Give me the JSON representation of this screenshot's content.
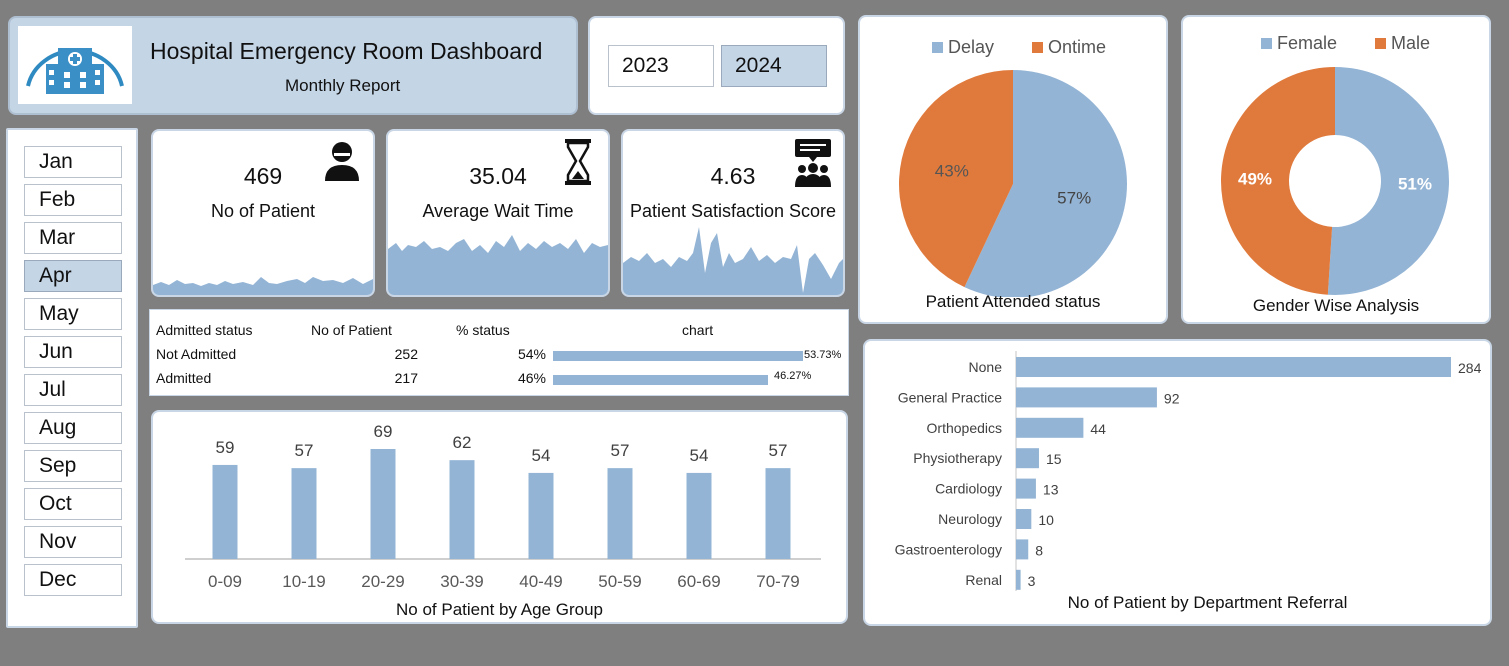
{
  "header": {
    "title": "Hospital Emergency Room Dashboard",
    "subtitle": "Monthly Report"
  },
  "years": {
    "items": [
      "2023",
      "2024"
    ],
    "selected": "2024"
  },
  "months": {
    "items": [
      "Jan",
      "Feb",
      "Mar",
      "Apr",
      "May",
      "Jun",
      "Jul",
      "Aug",
      "Sep",
      "Oct",
      "Nov",
      "Dec"
    ],
    "selected": "Apr"
  },
  "kpis": {
    "patients": {
      "value": "469",
      "label": "No of Patient",
      "icon": "user-icon"
    },
    "wait": {
      "value": "35.04",
      "label": "Average Wait Time",
      "icon": "hourglass-icon"
    },
    "satisfaction": {
      "value": "4.63",
      "label": "Patient Satisfaction Score",
      "icon": "group-chat-icon"
    }
  },
  "admitted": {
    "headers": [
      "Admitted status",
      "No of Patient",
      "% status",
      "chart"
    ],
    "rows": [
      {
        "status": "Not Admitted",
        "count": "252",
        "pct": "54%",
        "bar_label": "53.73%",
        "fraction": 0.5373
      },
      {
        "status": "Admitted",
        "count": "217",
        "pct": "46%",
        "bar_label": "46.27%",
        "fraction": 0.4627
      }
    ]
  },
  "colors": {
    "blue": "#93b4d5",
    "orange": "#e07a3c",
    "panel": "#c4d5e6"
  },
  "chart_data": [
    {
      "type": "bar",
      "title": "No of Patient by Age Group",
      "categories": [
        "0-09",
        "10-19",
        "20-29",
        "30-39",
        "40-49",
        "50-59",
        "60-69",
        "70-79"
      ],
      "values": [
        59,
        57,
        69,
        62,
        54,
        57,
        54,
        57
      ],
      "color": "#93b4d5"
    },
    {
      "type": "pie",
      "title": "Patient Attended status",
      "labels": [
        "Delay",
        "Ontime"
      ],
      "values": [
        57,
        43
      ],
      "data_labels": [
        "57%",
        "43%"
      ],
      "colors": [
        "#93b4d5",
        "#e07a3c"
      ],
      "legend": "top"
    },
    {
      "type": "pie",
      "title": "Gender Wise Analysis",
      "labels": [
        "Female",
        "Male"
      ],
      "values": [
        51,
        49
      ],
      "data_labels": [
        "51%",
        "49%"
      ],
      "colors": [
        "#93b4d5",
        "#e07a3c"
      ],
      "legend": "top",
      "donut": true
    },
    {
      "type": "bar",
      "orientation": "horizontal",
      "title": "No of Patient by Department Referral",
      "categories": [
        "None",
        "General Practice",
        "Orthopedics",
        "Physiotherapy",
        "Cardiology",
        "Neurology",
        "Gastroenterology",
        "Renal"
      ],
      "values": [
        284,
        92,
        44,
        15,
        13,
        10,
        8,
        3
      ],
      "color": "#93b4d5"
    }
  ]
}
